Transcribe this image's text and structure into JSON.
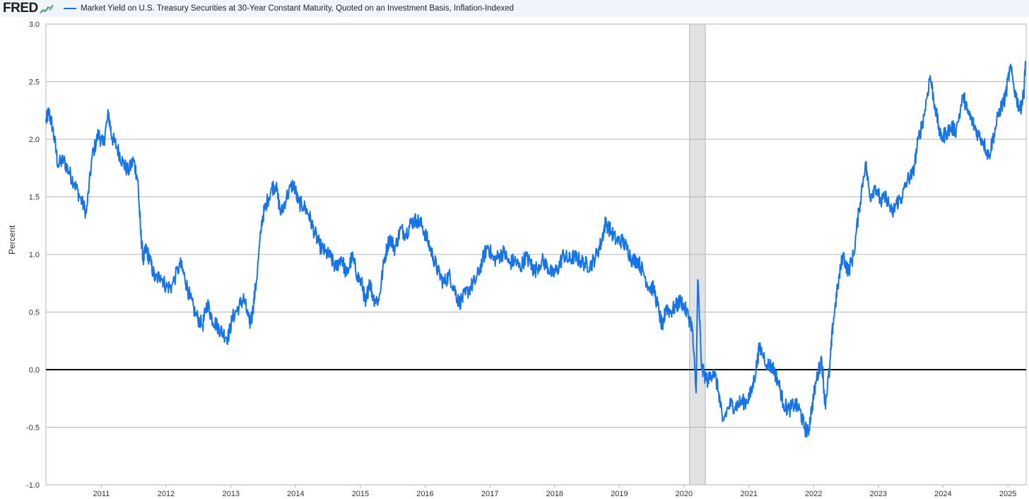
{
  "header": {
    "logo_text": "FRED",
    "logo_icon": "fred-chart-icon"
  },
  "colors": {
    "series": "#1674e6",
    "header_bg": "#f0f5fb",
    "grid": "#b6b6b6",
    "zero_line": "#000000",
    "recession_band": "#e1e2e3"
  },
  "chart_data": {
    "type": "line",
    "title": "",
    "xlabel": "",
    "ylabel": "Percent",
    "ylim": [
      -1.0,
      3.0
    ],
    "xlim": [
      "2010-02-22",
      "2025-04-14"
    ],
    "y_ticks": [
      "-1.0",
      "-0.5",
      "0.0",
      "0.5",
      "1.0",
      "1.5",
      "2.0",
      "2.5",
      "3.0"
    ],
    "x_ticks": [
      "2011",
      "2012",
      "2013",
      "2014",
      "2015",
      "2016",
      "2017",
      "2018",
      "2019",
      "2020",
      "2021",
      "2022",
      "2023",
      "2024",
      "2025"
    ],
    "grid": true,
    "legend": "top",
    "recession_shading": {
      "start": "2020-02-01",
      "end": "2020-04-30"
    },
    "series": [
      {
        "name": "Market Yield on U.S. Treasury Securities at 30-Year Constant Maturity, Quoted on an Investment Basis, Inflation-Indexed",
        "color": "#1674e6",
        "points": [
          [
            "2010-02-22",
            2.15
          ],
          [
            "2010-03-10",
            2.24
          ],
          [
            "2010-04-01",
            2.1
          ],
          [
            "2010-05-01",
            1.78
          ],
          [
            "2010-06-01",
            1.82
          ],
          [
            "2010-07-01",
            1.72
          ],
          [
            "2010-08-01",
            1.62
          ],
          [
            "2010-09-01",
            1.5
          ],
          [
            "2010-10-08",
            1.36
          ],
          [
            "2010-11-10",
            1.85
          ],
          [
            "2010-12-15",
            2.05
          ],
          [
            "2011-01-10",
            1.95
          ],
          [
            "2011-02-10",
            2.22
          ],
          [
            "2011-03-01",
            2.02
          ],
          [
            "2011-04-01",
            1.92
          ],
          [
            "2011-05-01",
            1.8
          ],
          [
            "2011-06-01",
            1.72
          ],
          [
            "2011-07-01",
            1.82
          ],
          [
            "2011-07-25",
            1.65
          ],
          [
            "2011-08-10",
            1.2
          ],
          [
            "2011-08-25",
            0.95
          ],
          [
            "2011-09-10",
            1.05
          ],
          [
            "2011-10-01",
            0.95
          ],
          [
            "2011-11-01",
            0.78
          ],
          [
            "2011-12-01",
            0.82
          ],
          [
            "2012-01-01",
            0.72
          ],
          [
            "2012-02-01",
            0.72
          ],
          [
            "2012-03-20",
            0.92
          ],
          [
            "2012-04-15",
            0.8
          ],
          [
            "2012-05-15",
            0.62
          ],
          [
            "2012-06-15",
            0.48
          ],
          [
            "2012-07-25",
            0.38
          ],
          [
            "2012-08-20",
            0.58
          ],
          [
            "2012-09-15",
            0.45
          ],
          [
            "2012-10-15",
            0.38
          ],
          [
            "2012-11-15",
            0.32
          ],
          [
            "2012-12-15",
            0.28
          ],
          [
            "2013-01-10",
            0.45
          ],
          [
            "2013-02-15",
            0.55
          ],
          [
            "2013-03-15",
            0.62
          ],
          [
            "2013-04-15",
            0.4
          ],
          [
            "2013-05-01",
            0.48
          ],
          [
            "2013-05-25",
            0.78
          ],
          [
            "2013-06-25",
            1.3
          ],
          [
            "2013-07-15",
            1.42
          ],
          [
            "2013-08-20",
            1.58
          ],
          [
            "2013-09-10",
            1.6
          ],
          [
            "2013-10-10",
            1.35
          ],
          [
            "2013-11-10",
            1.5
          ],
          [
            "2013-12-20",
            1.62
          ],
          [
            "2014-01-15",
            1.45
          ],
          [
            "2014-02-15",
            1.42
          ],
          [
            "2014-03-15",
            1.35
          ],
          [
            "2014-04-15",
            1.2
          ],
          [
            "2014-05-15",
            1.08
          ],
          [
            "2014-06-15",
            1.02
          ],
          [
            "2014-07-15",
            0.98
          ],
          [
            "2014-08-15",
            0.88
          ],
          [
            "2014-09-15",
            0.98
          ],
          [
            "2014-10-15",
            0.82
          ],
          [
            "2014-11-15",
            0.98
          ],
          [
            "2014-12-15",
            0.82
          ],
          [
            "2015-01-15",
            0.72
          ],
          [
            "2015-01-30",
            0.55
          ],
          [
            "2015-02-20",
            0.78
          ],
          [
            "2015-03-15",
            0.62
          ],
          [
            "2015-04-15",
            0.6
          ],
          [
            "2015-05-15",
            0.95
          ],
          [
            "2015-06-15",
            1.15
          ],
          [
            "2015-07-15",
            1.05
          ],
          [
            "2015-08-15",
            1.22
          ],
          [
            "2015-09-15",
            1.18
          ],
          [
            "2015-10-15",
            1.28
          ],
          [
            "2015-11-15",
            1.3
          ],
          [
            "2015-12-15",
            1.25
          ],
          [
            "2016-01-15",
            1.12
          ],
          [
            "2016-02-15",
            0.98
          ],
          [
            "2016-03-15",
            0.85
          ],
          [
            "2016-04-15",
            0.75
          ],
          [
            "2016-05-15",
            0.82
          ],
          [
            "2016-06-15",
            0.7
          ],
          [
            "2016-07-10",
            0.58
          ],
          [
            "2016-08-15",
            0.65
          ],
          [
            "2016-09-15",
            0.72
          ],
          [
            "2016-10-15",
            0.78
          ],
          [
            "2016-11-20",
            0.95
          ],
          [
            "2016-12-20",
            1.08
          ],
          [
            "2017-01-20",
            0.95
          ],
          [
            "2017-02-20",
            0.98
          ],
          [
            "2017-03-20",
            1.02
          ],
          [
            "2017-04-20",
            0.92
          ],
          [
            "2017-05-20",
            0.95
          ],
          [
            "2017-06-20",
            0.88
          ],
          [
            "2017-07-20",
            0.98
          ],
          [
            "2017-08-20",
            0.92
          ],
          [
            "2017-09-08",
            0.85
          ],
          [
            "2017-10-20",
            0.95
          ],
          [
            "2017-11-20",
            0.9
          ],
          [
            "2017-12-20",
            0.82
          ],
          [
            "2018-01-20",
            0.88
          ],
          [
            "2018-02-20",
            1.0
          ],
          [
            "2018-03-20",
            0.95
          ],
          [
            "2018-04-20",
            0.98
          ],
          [
            "2018-05-20",
            0.95
          ],
          [
            "2018-06-20",
            0.92
          ],
          [
            "2018-07-20",
            0.9
          ],
          [
            "2018-08-20",
            0.98
          ],
          [
            "2018-09-20",
            1.1
          ],
          [
            "2018-10-15",
            1.28
          ],
          [
            "2018-11-15",
            1.2
          ],
          [
            "2018-12-15",
            1.12
          ],
          [
            "2019-01-15",
            1.12
          ],
          [
            "2019-02-15",
            1.05
          ],
          [
            "2019-03-15",
            0.95
          ],
          [
            "2019-04-15",
            0.95
          ],
          [
            "2019-05-15",
            0.85
          ],
          [
            "2019-06-15",
            0.72
          ],
          [
            "2019-07-15",
            0.7
          ],
          [
            "2019-08-15",
            0.48
          ],
          [
            "2019-09-03",
            0.35
          ],
          [
            "2019-09-20",
            0.55
          ],
          [
            "2019-10-15",
            0.5
          ],
          [
            "2019-11-15",
            0.55
          ],
          [
            "2019-12-15",
            0.6
          ],
          [
            "2020-01-15",
            0.5
          ],
          [
            "2020-02-15",
            0.38
          ],
          [
            "2020-03-09",
            -0.2
          ],
          [
            "2020-03-18",
            0.78
          ],
          [
            "2020-04-10",
            0.0
          ],
          [
            "2020-05-15",
            -0.1
          ],
          [
            "2020-06-15",
            0.0
          ],
          [
            "2020-07-15",
            -0.2
          ],
          [
            "2020-08-05",
            -0.45
          ],
          [
            "2020-09-15",
            -0.3
          ],
          [
            "2020-10-15",
            -0.32
          ],
          [
            "2020-11-15",
            -0.28
          ],
          [
            "2020-12-15",
            -0.28
          ],
          [
            "2021-01-15",
            -0.2
          ],
          [
            "2021-02-15",
            0.05
          ],
          [
            "2021-03-01",
            0.2
          ],
          [
            "2021-04-15",
            0.05
          ],
          [
            "2021-05-15",
            0.02
          ],
          [
            "2021-06-15",
            -0.1
          ],
          [
            "2021-07-15",
            -0.3
          ],
          [
            "2021-08-15",
            -0.35
          ],
          [
            "2021-09-15",
            -0.3
          ],
          [
            "2021-10-15",
            -0.35
          ],
          [
            "2021-11-10",
            -0.5
          ],
          [
            "2021-12-01",
            -0.55
          ],
          [
            "2021-12-20",
            -0.35
          ],
          [
            "2022-01-15",
            -0.1
          ],
          [
            "2022-02-15",
            0.1
          ],
          [
            "2022-03-07",
            -0.3
          ],
          [
            "2022-04-01",
            0.0
          ],
          [
            "2022-04-20",
            0.4
          ],
          [
            "2022-05-15",
            0.7
          ],
          [
            "2022-06-15",
            1.0
          ],
          [
            "2022-07-15",
            0.85
          ],
          [
            "2022-08-15",
            1.0
          ],
          [
            "2022-09-15",
            1.4
          ],
          [
            "2022-10-20",
            1.8
          ],
          [
            "2022-11-15",
            1.5
          ],
          [
            "2022-12-15",
            1.6
          ],
          [
            "2023-01-15",
            1.45
          ],
          [
            "2023-02-15",
            1.5
          ],
          [
            "2023-03-20",
            1.35
          ],
          [
            "2023-04-15",
            1.45
          ],
          [
            "2023-05-15",
            1.5
          ],
          [
            "2023-06-15",
            1.65
          ],
          [
            "2023-07-15",
            1.7
          ],
          [
            "2023-08-15",
            2.0
          ],
          [
            "2023-09-15",
            2.2
          ],
          [
            "2023-10-20",
            2.55
          ],
          [
            "2023-11-15",
            2.3
          ],
          [
            "2023-12-20",
            2.0
          ],
          [
            "2024-01-15",
            2.05
          ],
          [
            "2024-02-15",
            2.1
          ],
          [
            "2024-03-15",
            2.08
          ],
          [
            "2024-04-25",
            2.38
          ],
          [
            "2024-05-15",
            2.25
          ],
          [
            "2024-06-15",
            2.15
          ],
          [
            "2024-07-15",
            2.05
          ],
          [
            "2024-08-15",
            1.98
          ],
          [
            "2024-09-15",
            1.85
          ],
          [
            "2024-10-15",
            2.05
          ],
          [
            "2024-11-15",
            2.25
          ],
          [
            "2024-12-15",
            2.35
          ],
          [
            "2025-01-14",
            2.62
          ],
          [
            "2025-02-15",
            2.38
          ],
          [
            "2025-03-10",
            2.25
          ],
          [
            "2025-04-01",
            2.4
          ],
          [
            "2025-04-10",
            2.68
          ]
        ]
      }
    ]
  }
}
